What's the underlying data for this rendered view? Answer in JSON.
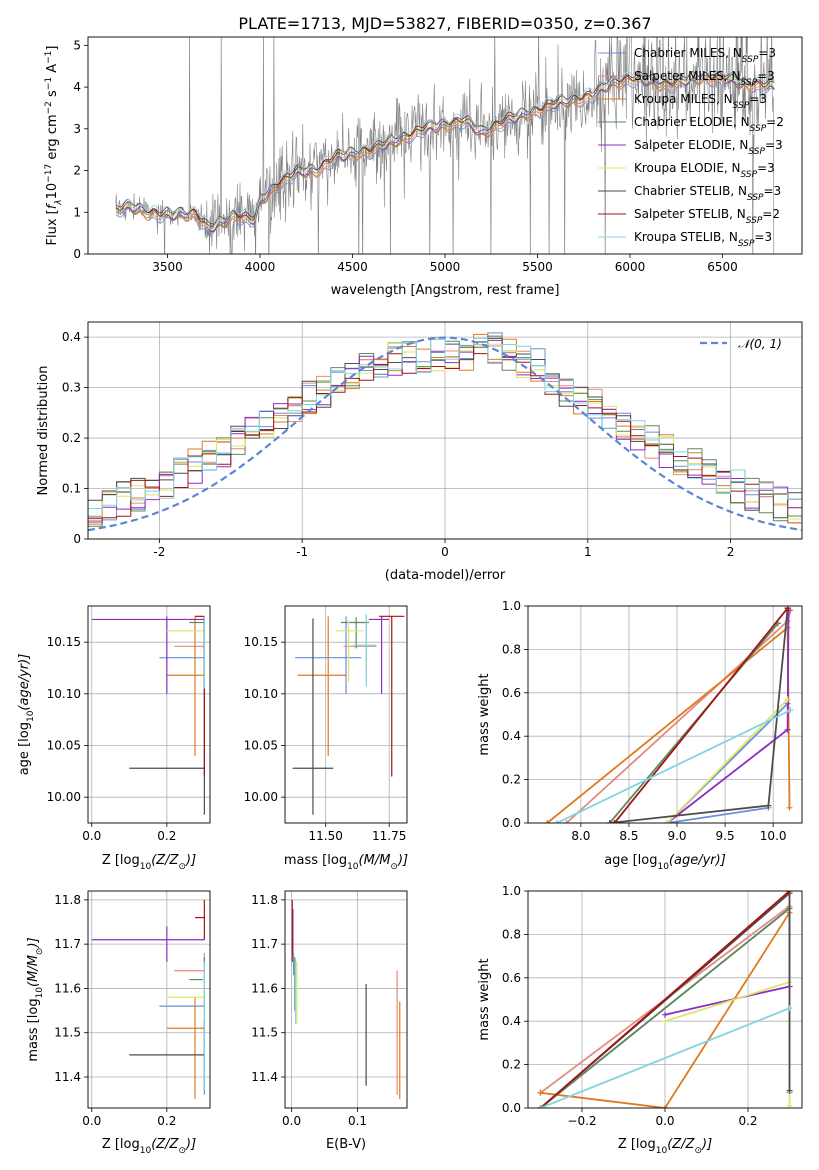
{
  "figure": {
    "title": "PLATE=1713, MJD=53827, FIBERID=0350, z=0.367"
  },
  "models": [
    {
      "name": "Chabrier MILES",
      "nssp": "3",
      "color": "#6b8fd8"
    },
    {
      "name": "Salpeter MILES",
      "nssp": "3",
      "color": "#e58a7e"
    },
    {
      "name": "Kroupa MILES",
      "nssp": "3",
      "color": "#e07a1f"
    },
    {
      "name": "Chabrier ELODIE",
      "nssp": "2",
      "color": "#5f8a5f"
    },
    {
      "name": "Salpeter ELODIE",
      "nssp": "3",
      "color": "#8e2cc2"
    },
    {
      "name": "Kroupa ELODIE",
      "nssp": "3",
      "color": "#dce66a"
    },
    {
      "name": "Chabrier STELIB",
      "nssp": "3",
      "color": "#4d4d4d"
    },
    {
      "name": "Salpeter STELIB",
      "nssp": "2",
      "color": "#a31515"
    },
    {
      "name": "Kroupa STELIB",
      "nssp": "3",
      "color": "#7fd6e0"
    }
  ],
  "chart_data": [
    {
      "id": "spectrum",
      "type": "line",
      "xlabel": "wavelength [Angstrom, rest frame]",
      "ylabel_parts": [
        "Flux [",
        "f",
        "λ",
        "10",
        "−17",
        " erg cm",
        "−2",
        " s",
        "−1",
        " A",
        "−1",
        "]"
      ],
      "xlim": [
        3070,
        6930
      ],
      "ylim": [
        0,
        5.2
      ],
      "xticks": [
        3500,
        4000,
        4500,
        5000,
        5500,
        6000,
        6500
      ],
      "yticks": [
        0,
        1,
        2,
        3,
        4,
        5
      ],
      "data_color": "#808080",
      "data_range": [
        3220,
        6780
      ],
      "model_shape": [
        [
          3220,
          1.05
        ],
        [
          3300,
          1.12
        ],
        [
          3400,
          1.0
        ],
        [
          3500,
          0.92
        ],
        [
          3560,
          0.95
        ],
        [
          3650,
          0.98
        ],
        [
          3720,
          0.6
        ],
        [
          3800,
          0.75
        ],
        [
          3860,
          0.95
        ],
        [
          3930,
          0.85
        ],
        [
          3970,
          0.8
        ],
        [
          4000,
          1.25
        ],
        [
          4100,
          1.7
        ],
        [
          4200,
          1.95
        ],
        [
          4300,
          2.0
        ],
        [
          4400,
          2.3
        ],
        [
          4500,
          2.4
        ],
        [
          4600,
          2.5
        ],
        [
          4700,
          2.65
        ],
        [
          4800,
          2.85
        ],
        [
          4900,
          3.0
        ],
        [
          5000,
          3.1
        ],
        [
          5100,
          3.2
        ],
        [
          5200,
          2.9
        ],
        [
          5300,
          3.15
        ],
        [
          5400,
          3.3
        ],
        [
          5500,
          3.45
        ],
        [
          5600,
          3.6
        ],
        [
          5700,
          3.7
        ],
        [
          5800,
          3.8
        ],
        [
          5900,
          4.1
        ],
        [
          6000,
          4.2
        ],
        [
          6100,
          4.15
        ],
        [
          6200,
          4.05
        ],
        [
          6300,
          4.15
        ],
        [
          6400,
          4.25
        ],
        [
          6500,
          4.2
        ],
        [
          6600,
          4.1
        ],
        [
          6700,
          4.05
        ],
        [
          6780,
          4.0
        ]
      ],
      "legend_position": "upper right",
      "grid": false
    },
    {
      "id": "residuals",
      "type": "histogram",
      "xlabel": "(data-model)/error",
      "ylabel": "Normed distribution",
      "xlim": [
        -2.5,
        2.5
      ],
      "ylim": [
        0,
        0.43
      ],
      "xticks": [
        -2,
        -1,
        0,
        1,
        2
      ],
      "yticks": [
        0.0,
        0.1,
        0.2,
        0.3,
        0.4
      ],
      "bin_width": 0.1,
      "bin_range": [
        -2.5,
        2.5
      ],
      "reference": {
        "label": "𝒩(0, 1)",
        "mean": 0,
        "sigma": 1,
        "color": "#5b86d6"
      },
      "legend_position": "upper right",
      "grid": true
    },
    {
      "id": "age-vs-Z",
      "type": "errorbar",
      "xlabel_parts": [
        "Z [log",
        "10",
        "(Z/Z",
        "⊙",
        ")]"
      ],
      "ylabel_parts": [
        "age  [log",
        "10",
        "(age/yr)]"
      ],
      "xlim": [
        -0.01,
        0.315
      ],
      "ylim": [
        9.975,
        10.185
      ],
      "xticks": [
        0.0,
        0.2
      ],
      "xtick_labels": [
        "0.0",
        "0.2"
      ],
      "yticks": [
        10.0,
        10.05,
        10.1,
        10.15
      ],
      "ytick_labels": [
        "10.00",
        "10.05",
        "10.10",
        "10.15"
      ],
      "grid": true,
      "points": [
        {
          "x": 0.3,
          "y": 10.135,
          "xerr": [
            0.12,
            0
          ],
          "yerr": [
            0.035,
            0.04
          ]
        },
        {
          "x": 0.3,
          "y": 10.146,
          "xerr": [
            0.08,
            0
          ],
          "yerr": [
            0.03,
            0.029
          ]
        },
        {
          "x": 0.275,
          "y": 10.118,
          "xerr": [
            0.075,
            0.025
          ],
          "yerr": [
            0.078,
            0.057
          ]
        },
        {
          "x": 0.3,
          "y": 10.169,
          "xerr": [
            0.04,
            0
          ],
          "yerr": [
            0.025,
            0.005
          ]
        },
        {
          "x": 0.2,
          "y": 10.172,
          "xerr": [
            0.2,
            0.1
          ],
          "yerr": [
            0.072,
            0.003
          ]
        },
        {
          "x": 0.3,
          "y": 10.161,
          "xerr": [
            0.1,
            0
          ],
          "yerr": [
            0.05,
            0.01
          ]
        },
        {
          "x": 0.3,
          "y": 10.028,
          "xerr": [
            0.2,
            0
          ],
          "yerr": [
            0.045,
            0.145
          ]
        },
        {
          "x": 0.3,
          "y": 10.175,
          "xerr": [
            0.025,
            0
          ],
          "yerr": [
            0.155,
            0
          ]
        },
        {
          "x": 0.3,
          "y": 10.145,
          "xerr": [
            0.005,
            0
          ],
          "yerr": [
            0.04,
            0.03
          ]
        }
      ]
    },
    {
      "id": "age-vs-mass",
      "type": "errorbar",
      "xlabel_parts": [
        "mass [log",
        "10",
        "(M/M",
        "⊙",
        ")]"
      ],
      "xlim": [
        11.34,
        11.82
      ],
      "ylim": [
        9.975,
        10.185
      ],
      "xticks": [
        11.5,
        11.75
      ],
      "xtick_labels": [
        "11.50",
        "11.75"
      ],
      "yticks": [
        10.0,
        10.05,
        10.1,
        10.15
      ],
      "ytick_labels": [
        "10.00",
        "10.05",
        "10.10",
        "10.15"
      ],
      "grid": true,
      "points": [
        {
          "x": 11.58,
          "y": 10.135,
          "xerr": [
            0.2,
            0.06
          ],
          "yerr": [
            0.035,
            0.04
          ]
        },
        {
          "x": 11.66,
          "y": 10.146,
          "xerr": [
            0.09,
            0.04
          ],
          "yerr": [
            0.03,
            0.029
          ]
        },
        {
          "x": 11.51,
          "y": 10.118,
          "xerr": [
            0.12,
            0.07
          ],
          "yerr": [
            0.078,
            0.057
          ]
        },
        {
          "x": 11.62,
          "y": 10.169,
          "xerr": [
            0.06,
            0.05
          ],
          "yerr": [
            0.025,
            0.005
          ]
        },
        {
          "x": 11.72,
          "y": 10.172,
          "xerr": [
            0.05,
            0.03
          ],
          "yerr": [
            0.072,
            0.003
          ]
        },
        {
          "x": 11.59,
          "y": 10.161,
          "xerr": [
            0.05,
            0.06
          ],
          "yerr": [
            0.05,
            0.01
          ]
        },
        {
          "x": 11.45,
          "y": 10.028,
          "xerr": [
            0.08,
            0.08
          ],
          "yerr": [
            0.045,
            0.145
          ]
        },
        {
          "x": 11.76,
          "y": 10.175,
          "xerr": [
            0.05,
            0.05
          ],
          "yerr": [
            0.155,
            0
          ]
        },
        {
          "x": 11.66,
          "y": 10.147,
          "xerr": [
            0.05,
            0.04
          ],
          "yerr": [
            0.04,
            0.03
          ]
        }
      ]
    },
    {
      "id": "massweight-vs-age",
      "type": "line",
      "xlabel_parts": [
        "age  [log",
        "10",
        "(age/yr)]"
      ],
      "ylabel": "mass weight",
      "xlim": [
        7.45,
        10.3
      ],
      "ylim": [
        0,
        1.0
      ],
      "xticks": [
        8.0,
        8.5,
        9.0,
        9.5,
        10.0
      ],
      "xtick_labels": [
        "8.0",
        "8.5",
        "9.0",
        "9.5",
        "10.0"
      ],
      "yticks": [
        0.0,
        0.2,
        0.4,
        0.6,
        0.8,
        1.0
      ],
      "ytick_labels": [
        "0.0",
        "0.2",
        "0.4",
        "0.6",
        "0.8",
        "1.0"
      ],
      "grid": true,
      "series": [
        [
          [
            9.95,
            0.07
          ],
          [
            8.9,
            0.0
          ],
          [
            10.15,
            0.55
          ]
        ],
        [
          [
            7.85,
            0.0
          ],
          [
            10.15,
            0.93
          ],
          [
            10.18,
            0.98
          ]
        ],
        [
          [
            7.65,
            0.0
          ],
          [
            10.15,
            0.9
          ],
          [
            10.17,
            0.07
          ]
        ],
        [
          [
            8.3,
            0.0
          ],
          [
            10.05,
            0.92
          ]
        ],
        [
          [
            8.9,
            0.0
          ],
          [
            10.15,
            0.43
          ],
          [
            10.16,
            0.98
          ]
        ],
        [
          [
            8.9,
            0.0
          ],
          [
            10.15,
            0.57
          ]
        ],
        [
          [
            8.3,
            0.0
          ],
          [
            9.95,
            0.08
          ],
          [
            10.15,
            0.99
          ]
        ],
        [
          [
            8.35,
            0.0
          ],
          [
            10.15,
            0.99
          ]
        ],
        [
          [
            7.75,
            0.0
          ],
          [
            10.18,
            0.52
          ]
        ]
      ]
    },
    {
      "id": "mass-vs-Z",
      "type": "errorbar",
      "xlabel_parts": [
        "Z [log",
        "10",
        "(Z/Z",
        "⊙",
        ")]"
      ],
      "ylabel_parts": [
        "mass [log",
        "10",
        "(M/M",
        "⊙",
        ")]"
      ],
      "xlim": [
        -0.01,
        0.315
      ],
      "ylim": [
        11.33,
        11.82
      ],
      "xticks": [
        0.0,
        0.2
      ],
      "xtick_labels": [
        "0.0",
        "0.2"
      ],
      "yticks": [
        11.4,
        11.5,
        11.6,
        11.7,
        11.8
      ],
      "ytick_labels": [
        "11.4",
        "11.5",
        "11.6",
        "11.7",
        "11.8"
      ],
      "grid": true,
      "points": [
        {
          "x": 0.3,
          "y": 11.56,
          "xerr": [
            0.12,
            0
          ],
          "yerr": [
            0.2,
            0.06
          ]
        },
        {
          "x": 0.3,
          "y": 11.64,
          "xerr": [
            0.08,
            0
          ],
          "yerr": [
            0.09,
            0.04
          ]
        },
        {
          "x": 0.275,
          "y": 11.51,
          "xerr": [
            0.075,
            0.025
          ],
          "yerr": [
            0.16,
            0.07
          ]
        },
        {
          "x": 0.3,
          "y": 11.62,
          "xerr": [
            0.04,
            0
          ],
          "yerr": [
            0.06,
            0.05
          ]
        },
        {
          "x": 0.2,
          "y": 11.71,
          "xerr": [
            0.2,
            0.1
          ],
          "yerr": [
            0.05,
            0.03
          ]
        },
        {
          "x": 0.3,
          "y": 11.58,
          "xerr": [
            0.1,
            0
          ],
          "yerr": [
            0.05,
            0.06
          ]
        },
        {
          "x": 0.3,
          "y": 11.45,
          "xerr": [
            0.2,
            0
          ],
          "yerr": [
            0.08,
            0.08
          ]
        },
        {
          "x": 0.3,
          "y": 11.76,
          "xerr": [
            0.025,
            0
          ],
          "yerr": [
            0.05,
            0.04
          ]
        },
        {
          "x": 0.3,
          "y": 11.62,
          "xerr": [
            0.005,
            0
          ],
          "yerr": [
            0.25,
            0.04
          ]
        }
      ]
    },
    {
      "id": "mass-vs-ebv",
      "type": "errorbar",
      "xlabel": "E(B-V)",
      "xlim": [
        -0.01,
        0.175
      ],
      "ylim": [
        11.33,
        11.82
      ],
      "xticks": [
        0.0,
        0.1
      ],
      "xtick_labels": [
        "0.0",
        "0.1"
      ],
      "yticks": [
        11.4,
        11.5,
        11.6,
        11.7,
        11.8
      ],
      "ytick_labels": [
        "11.4",
        "11.5",
        "11.6",
        "11.7",
        "11.8"
      ],
      "grid": true,
      "points": [
        {
          "x": 0.003,
          "y": 11.66,
          "xerr": [
            0,
            0
          ],
          "yerr": [
            0.03,
            0.02
          ]
        },
        {
          "x": 0.16,
          "y": 11.56,
          "xerr": [
            0,
            0
          ],
          "yerr": [
            0.2,
            0.08
          ]
        },
        {
          "x": 0.164,
          "y": 11.47,
          "xerr": [
            0,
            0
          ],
          "yerr": [
            0.12,
            0.1
          ]
        },
        {
          "x": 0.005,
          "y": 11.63,
          "xerr": [
            0,
            0
          ],
          "yerr": [
            0.08,
            0.04
          ]
        },
        {
          "x": 0.002,
          "y": 11.73,
          "xerr": [
            0,
            0
          ],
          "yerr": [
            0.05,
            0.05
          ]
        },
        {
          "x": 0.008,
          "y": 11.59,
          "xerr": [
            0,
            0
          ],
          "yerr": [
            0.07,
            0.07
          ]
        },
        {
          "x": 0.113,
          "y": 11.49,
          "xerr": [
            0,
            0
          ],
          "yerr": [
            0.11,
            0.12
          ]
        },
        {
          "x": 0.001,
          "y": 11.74,
          "xerr": [
            0,
            0
          ],
          "yerr": [
            0.08,
            0.06
          ]
        },
        {
          "x": 0.006,
          "y": 11.6,
          "xerr": [
            0,
            0
          ],
          "yerr": [
            0.08,
            0.07
          ]
        }
      ]
    },
    {
      "id": "massweight-vs-Z",
      "type": "line",
      "xlabel_parts": [
        "Z [log",
        "10",
        "(Z/Z",
        "⊙",
        ")]"
      ],
      "ylabel": "mass weight",
      "xlim": [
        -0.33,
        0.33
      ],
      "ylim": [
        0,
        1.0
      ],
      "xticks": [
        -0.2,
        0.0,
        0.2
      ],
      "xtick_labels": [
        "−0.2",
        "0.0",
        "0.2"
      ],
      "yticks": [
        0.0,
        0.2,
        0.4,
        0.6,
        0.8,
        1.0
      ],
      "ytick_labels": [
        "0.0",
        "0.2",
        "0.4",
        "0.6",
        "0.8",
        "1.0"
      ],
      "grid": true,
      "series": [
        [
          [
            -0.3,
            0.0
          ],
          [
            0.3,
            0.92
          ],
          [
            0.3,
            0.07
          ]
        ],
        [
          [
            -0.3,
            0.07
          ],
          [
            0.3,
            0.93
          ]
        ],
        [
          [
            -0.3,
            0.07
          ],
          [
            0.0,
            0.0
          ],
          [
            0.3,
            0.9
          ]
        ],
        [
          [
            -0.3,
            0.0
          ],
          [
            0.3,
            0.92
          ]
        ],
        [
          [
            0.0,
            0.43
          ],
          [
            0.3,
            0.56
          ]
        ],
        [
          [
            0.0,
            0.4
          ],
          [
            0.3,
            0.58
          ],
          [
            0.3,
            0.01
          ]
        ],
        [
          [
            -0.3,
            0.0
          ],
          [
            0.3,
            0.99
          ],
          [
            0.3,
            0.08
          ]
        ],
        [
          [
            -0.3,
            0.0
          ],
          [
            0.3,
            1.0
          ]
        ],
        [
          [
            -0.3,
            0.0
          ],
          [
            0.3,
            0.46
          ]
        ]
      ]
    }
  ]
}
